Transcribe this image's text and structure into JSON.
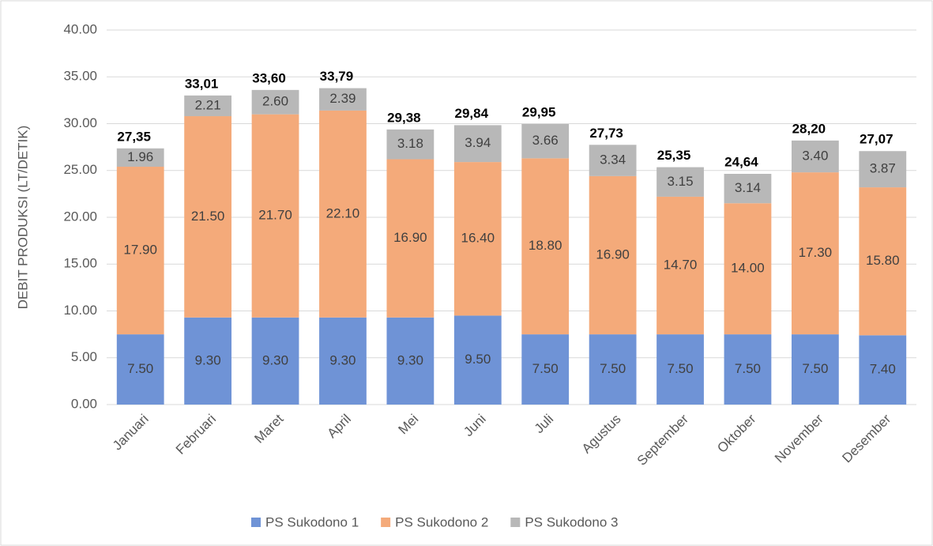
{
  "chart_data": {
    "type": "stacked_bar",
    "y_axis_label": "DEBIT PRODUKSI (LT/DETIK)",
    "categories": [
      "Januari",
      "Februari",
      "Maret",
      "April",
      "Mei",
      "Juni",
      "Juli",
      "Agustus",
      "September",
      "Oktober",
      "November",
      "Desember"
    ],
    "series": [
      {
        "name": "PS Sukodono 1",
        "color": "#6f93d6",
        "values": [
          7.5,
          9.3,
          9.3,
          9.3,
          9.3,
          9.5,
          7.5,
          7.5,
          7.5,
          7.5,
          7.5,
          7.4
        ],
        "value_labels": [
          "7.50",
          "9.30",
          "9.30",
          "9.30",
          "9.30",
          "9.50",
          "7.50",
          "7.50",
          "7.50",
          "7.50",
          "7.50",
          "7.40"
        ]
      },
      {
        "name": "PS Sukodono 2",
        "color": "#f4aa7a",
        "values": [
          17.9,
          21.5,
          21.7,
          22.1,
          16.9,
          16.4,
          18.8,
          16.9,
          14.7,
          14.0,
          17.3,
          15.8
        ],
        "value_labels": [
          "17.90",
          "21.50",
          "21.70",
          "22.10",
          "16.90",
          "16.40",
          "18.80",
          "16.90",
          "14.70",
          "14.00",
          "17.30",
          "15.80"
        ]
      },
      {
        "name": "PS Sukodono 3",
        "color": "#b8b8b8",
        "values": [
          1.96,
          2.21,
          2.6,
          2.39,
          3.18,
          3.94,
          3.66,
          3.34,
          3.15,
          3.14,
          3.4,
          3.87
        ],
        "value_labels": [
          "1.96",
          "2.21",
          "2.60",
          "2.39",
          "3.18",
          "3.94",
          "3.66",
          "3.34",
          "3.15",
          "3.14",
          "3.40",
          "3.87"
        ]
      }
    ],
    "totals": [
      27.35,
      33.01,
      33.6,
      33.79,
      29.38,
      29.84,
      29.95,
      27.73,
      25.35,
      24.64,
      28.2,
      27.07
    ],
    "total_labels": [
      "27,35",
      "33,01",
      "33,60",
      "33,79",
      "29,38",
      "29,84",
      "29,95",
      "27,73",
      "25,35",
      "24,64",
      "28,20",
      "27,07"
    ],
    "ylim": [
      0,
      40
    ],
    "yticks": [
      {
        "value": 0,
        "label": "0.00"
      },
      {
        "value": 5,
        "label": "5.00"
      },
      {
        "value": 10,
        "label": "10.00"
      },
      {
        "value": 15,
        "label": "15.00"
      },
      {
        "value": 20,
        "label": "20.00"
      },
      {
        "value": 25,
        "label": "25.00"
      },
      {
        "value": 30,
        "label": "30.00"
      },
      {
        "value": 35,
        "label": "35.00"
      },
      {
        "value": 40,
        "label": "40.00"
      }
    ],
    "grid": true,
    "legend": "bottom"
  }
}
